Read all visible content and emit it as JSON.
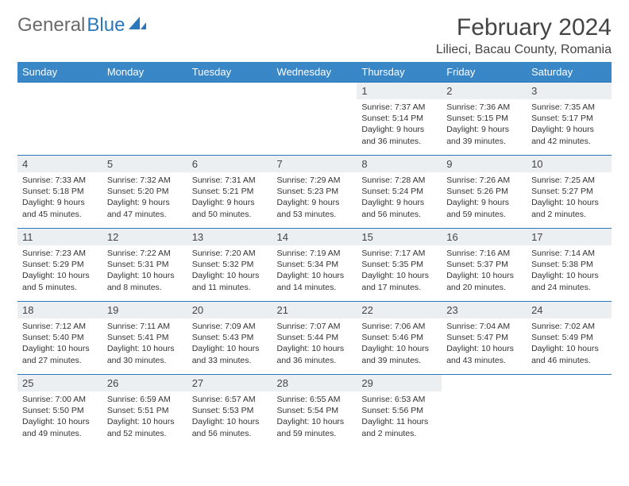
{
  "logo": {
    "text1": "General",
    "text2": "Blue"
  },
  "title": {
    "month": "February 2024",
    "location": "Lilieci, Bacau County, Romania"
  },
  "colors": {
    "header_bg": "#3a87c8",
    "header_text": "#ffffff",
    "daynum_bg": "#eceff2",
    "border": "#2a77bb",
    "body_text": "#333333",
    "logo_gray": "#6a6a6a",
    "logo_blue": "#2a77bb"
  },
  "dow": [
    "Sunday",
    "Monday",
    "Tuesday",
    "Wednesday",
    "Thursday",
    "Friday",
    "Saturday"
  ],
  "weeks": [
    [
      {
        "empty": true
      },
      {
        "empty": true
      },
      {
        "empty": true
      },
      {
        "empty": true
      },
      {
        "num": "1",
        "sunrise": "7:37 AM",
        "sunset": "5:14 PM",
        "daylight": "9 hours and 36 minutes."
      },
      {
        "num": "2",
        "sunrise": "7:36 AM",
        "sunset": "5:15 PM",
        "daylight": "9 hours and 39 minutes."
      },
      {
        "num": "3",
        "sunrise": "7:35 AM",
        "sunset": "5:17 PM",
        "daylight": "9 hours and 42 minutes."
      }
    ],
    [
      {
        "num": "4",
        "sunrise": "7:33 AM",
        "sunset": "5:18 PM",
        "daylight": "9 hours and 45 minutes."
      },
      {
        "num": "5",
        "sunrise": "7:32 AM",
        "sunset": "5:20 PM",
        "daylight": "9 hours and 47 minutes."
      },
      {
        "num": "6",
        "sunrise": "7:31 AM",
        "sunset": "5:21 PM",
        "daylight": "9 hours and 50 minutes."
      },
      {
        "num": "7",
        "sunrise": "7:29 AM",
        "sunset": "5:23 PM",
        "daylight": "9 hours and 53 minutes."
      },
      {
        "num": "8",
        "sunrise": "7:28 AM",
        "sunset": "5:24 PM",
        "daylight": "9 hours and 56 minutes."
      },
      {
        "num": "9",
        "sunrise": "7:26 AM",
        "sunset": "5:26 PM",
        "daylight": "9 hours and 59 minutes."
      },
      {
        "num": "10",
        "sunrise": "7:25 AM",
        "sunset": "5:27 PM",
        "daylight": "10 hours and 2 minutes."
      }
    ],
    [
      {
        "num": "11",
        "sunrise": "7:23 AM",
        "sunset": "5:29 PM",
        "daylight": "10 hours and 5 minutes."
      },
      {
        "num": "12",
        "sunrise": "7:22 AM",
        "sunset": "5:31 PM",
        "daylight": "10 hours and 8 minutes."
      },
      {
        "num": "13",
        "sunrise": "7:20 AM",
        "sunset": "5:32 PM",
        "daylight": "10 hours and 11 minutes."
      },
      {
        "num": "14",
        "sunrise": "7:19 AM",
        "sunset": "5:34 PM",
        "daylight": "10 hours and 14 minutes."
      },
      {
        "num": "15",
        "sunrise": "7:17 AM",
        "sunset": "5:35 PM",
        "daylight": "10 hours and 17 minutes."
      },
      {
        "num": "16",
        "sunrise": "7:16 AM",
        "sunset": "5:37 PM",
        "daylight": "10 hours and 20 minutes."
      },
      {
        "num": "17",
        "sunrise": "7:14 AM",
        "sunset": "5:38 PM",
        "daylight": "10 hours and 24 minutes."
      }
    ],
    [
      {
        "num": "18",
        "sunrise": "7:12 AM",
        "sunset": "5:40 PM",
        "daylight": "10 hours and 27 minutes."
      },
      {
        "num": "19",
        "sunrise": "7:11 AM",
        "sunset": "5:41 PM",
        "daylight": "10 hours and 30 minutes."
      },
      {
        "num": "20",
        "sunrise": "7:09 AM",
        "sunset": "5:43 PM",
        "daylight": "10 hours and 33 minutes."
      },
      {
        "num": "21",
        "sunrise": "7:07 AM",
        "sunset": "5:44 PM",
        "daylight": "10 hours and 36 minutes."
      },
      {
        "num": "22",
        "sunrise": "7:06 AM",
        "sunset": "5:46 PM",
        "daylight": "10 hours and 39 minutes."
      },
      {
        "num": "23",
        "sunrise": "7:04 AM",
        "sunset": "5:47 PM",
        "daylight": "10 hours and 43 minutes."
      },
      {
        "num": "24",
        "sunrise": "7:02 AM",
        "sunset": "5:49 PM",
        "daylight": "10 hours and 46 minutes."
      }
    ],
    [
      {
        "num": "25",
        "sunrise": "7:00 AM",
        "sunset": "5:50 PM",
        "daylight": "10 hours and 49 minutes."
      },
      {
        "num": "26",
        "sunrise": "6:59 AM",
        "sunset": "5:51 PM",
        "daylight": "10 hours and 52 minutes."
      },
      {
        "num": "27",
        "sunrise": "6:57 AM",
        "sunset": "5:53 PM",
        "daylight": "10 hours and 56 minutes."
      },
      {
        "num": "28",
        "sunrise": "6:55 AM",
        "sunset": "5:54 PM",
        "daylight": "10 hours and 59 minutes."
      },
      {
        "num": "29",
        "sunrise": "6:53 AM",
        "sunset": "5:56 PM",
        "daylight": "11 hours and 2 minutes."
      },
      {
        "empty": true
      },
      {
        "empty": true
      }
    ]
  ]
}
